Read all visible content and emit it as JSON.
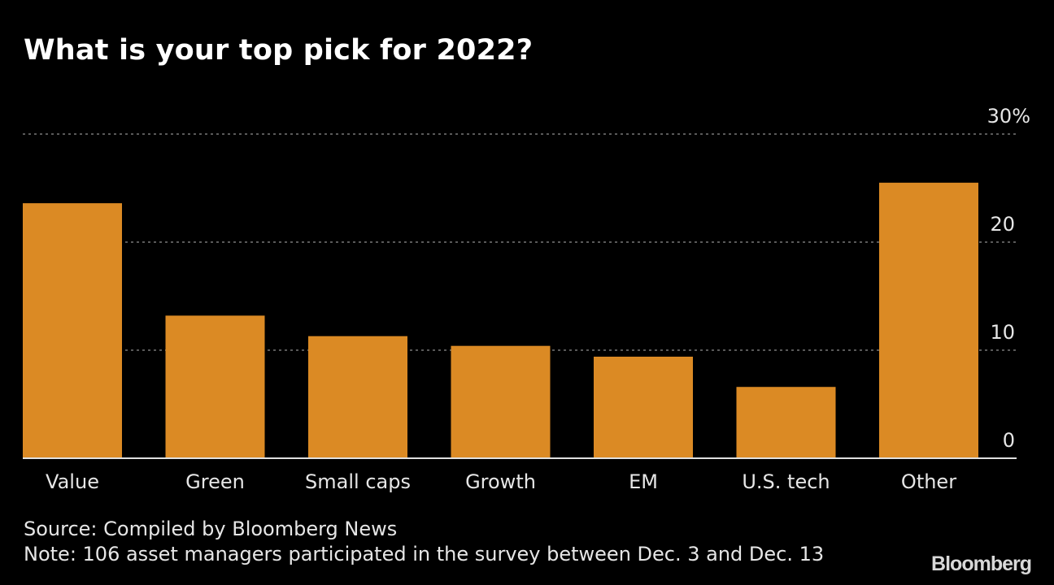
{
  "title": "What is your top pick for 2022?",
  "footer": {
    "source": "Source: Compiled by Bloomberg News",
    "note": "Note: 106 asset managers participated in the survey between Dec. 3 and Dec. 13",
    "logo": "Bloomberg"
  },
  "colors": {
    "bar": "#DB8A24",
    "background": "#000000",
    "grid": "#777777",
    "axis": "#e0e0e0",
    "text": "#e6e6e6"
  },
  "chart_data": {
    "type": "bar",
    "title": "What is your top pick for 2022?",
    "xlabel": "",
    "ylabel": "",
    "categories": [
      "Value",
      "Green",
      "Small caps",
      "Growth",
      "EM",
      "U.S. tech",
      "Other"
    ],
    "values": [
      23.6,
      13.2,
      11.3,
      10.4,
      9.4,
      6.6,
      25.5
    ],
    "unit": "%",
    "ylim": [
      0,
      30
    ],
    "yticks": [
      0,
      10,
      20,
      30
    ],
    "ytick_labels": [
      "0",
      "10",
      "20",
      "30%"
    ],
    "y_axis_position": "right",
    "grid": true,
    "grid_style": "dotted",
    "legend": "none"
  }
}
